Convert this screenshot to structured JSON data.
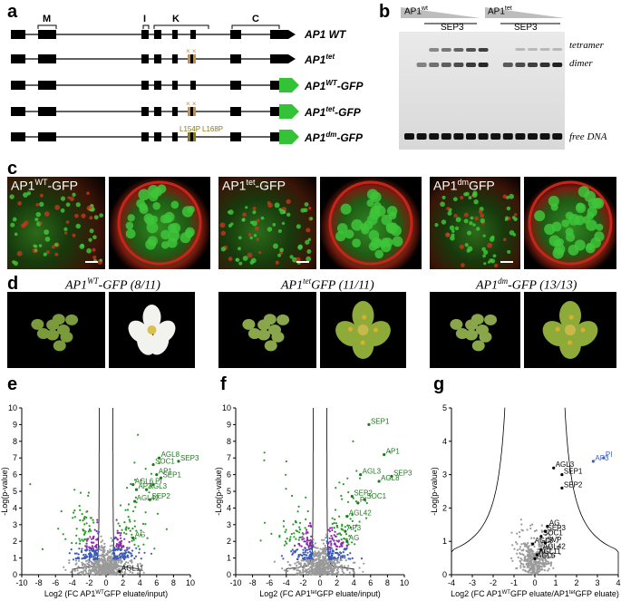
{
  "panels": {
    "a": "a",
    "b": "b",
    "c": "c",
    "d": "d",
    "e": "e",
    "f": "f",
    "g": "g"
  },
  "panel_a": {
    "domains": {
      "M": "M",
      "I": "I",
      "K": "K",
      "C": "C"
    },
    "constructs": [
      {
        "name": "AP1 WT",
        "sup": "",
        "rest": ""
      },
      {
        "name": "AP1",
        "sup": "tet",
        "rest": ""
      },
      {
        "name": "AP1",
        "sup": "WT",
        "rest": "-GFP"
      },
      {
        "name": "AP1",
        "sup": "tet",
        "rest": "-GFP"
      },
      {
        "name": "AP1",
        "sup": "dm",
        "rest": "-GFP"
      }
    ],
    "mutation_mark": "× ×",
    "mutations": {
      "m1": "L154P",
      "m2": "L168P"
    },
    "colors": {
      "mutation": "#c8913a",
      "gfp": "#34c236",
      "mut_text": "#8a7a10"
    }
  },
  "panel_b": {
    "ap1wt": "AP1",
    "ap1wt_sup": "wt",
    "ap1tet": "AP1",
    "ap1tet_sup": "tet",
    "sep3_left": "SEP3",
    "sep3_right": "SEP3",
    "tetramer": "tetramer",
    "dimer": "dimer",
    "free_dna": "free DNA"
  },
  "panel_c": [
    {
      "name": "AP1",
      "sup": "WT",
      "rest": "-GFP"
    },
    {
      "name": "AP1",
      "sup": "tet",
      "rest": "-GFP"
    },
    {
      "name": "AP1",
      "sup": "dm",
      "rest": "GFP"
    }
  ],
  "panel_d": [
    {
      "name": "AP1",
      "sup": "WT",
      "rest": "-GFP (8/11)"
    },
    {
      "name": "AP1",
      "sup": "tet",
      "rest": "GFP (11/11)"
    },
    {
      "name": "AP1",
      "sup": "dm",
      "rest": "-GFP (13/13)"
    }
  ],
  "chart_data": [
    {
      "type": "scatter",
      "panel": "e",
      "xlabel_pre": "Log2 (FC AP1",
      "xlabel_sup": "WT",
      "xlabel_post": "GFP eluate/input)",
      "ylabel": "-Log(p-value)",
      "xlim": [
        -10,
        10
      ],
      "ylim": [
        0,
        10
      ],
      "xticks": [
        -10,
        -8,
        -6,
        -4,
        -2,
        0,
        2,
        4,
        6,
        8,
        10
      ],
      "yticks": [
        0,
        1,
        2,
        3,
        4,
        5,
        6,
        7,
        8,
        9,
        10
      ],
      "labeled_points": [
        {
          "label": "AGL8",
          "x": 6.3,
          "y": 7.0,
          "color": "#1e7a1e"
        },
        {
          "label": "SEP3",
          "x": 8.6,
          "y": 6.8,
          "color": "#1e7a1e"
        },
        {
          "label": "SOC1",
          "x": 5.6,
          "y": 6.6,
          "color": "#1e7a1e"
        },
        {
          "label": "AP1",
          "x": 6.0,
          "y": 6.0,
          "color": "#1e7a1e"
        },
        {
          "label": "SEP1",
          "x": 6.5,
          "y": 5.8,
          "color": "#1e7a1e"
        },
        {
          "label": "AGL6",
          "x": 3.2,
          "y": 5.4,
          "color": "#1e7a1e"
        },
        {
          "label": "PI",
          "x": 5.6,
          "y": 5.4,
          "color": "#1e7a1e"
        },
        {
          "label": "AP3",
          "x": 3.6,
          "y": 5.1,
          "color": "#1e7a1e"
        },
        {
          "label": "AGL3",
          "x": 4.8,
          "y": 5.1,
          "color": "#1e7a1e"
        },
        {
          "label": "SEP2",
          "x": 5.2,
          "y": 4.5,
          "color": "#1e7a1e"
        },
        {
          "label": "AGL42",
          "x": 3.4,
          "y": 4.4,
          "color": "#1e7a1e"
        },
        {
          "label": "AG",
          "x": 3.2,
          "y": 2.2,
          "color": "#1e7a1e"
        },
        {
          "label": "AGL11",
          "x": 1.6,
          "y": 0.2,
          "color": "#000000"
        }
      ]
    },
    {
      "type": "scatter",
      "panel": "f",
      "xlabel_pre": "Log2 (FC AP1",
      "xlabel_sup": "tet",
      "xlabel_post": "GFP eluate/input)",
      "ylabel": "-Log(p-value)",
      "xlim": [
        -10,
        10
      ],
      "ylim": [
        0,
        10
      ],
      "xticks": [
        -10,
        -8,
        -6,
        -4,
        -2,
        0,
        2,
        4,
        6,
        8,
        10
      ],
      "yticks": [
        0,
        1,
        2,
        3,
        4,
        5,
        6,
        7,
        8,
        9,
        10
      ],
      "labeled_points": [
        {
          "label": "SEP1",
          "x": 5.8,
          "y": 9.0,
          "color": "#1e7a1e"
        },
        {
          "label": "AP1",
          "x": 7.6,
          "y": 7.2,
          "color": "#1e7a1e"
        },
        {
          "label": "AGL3",
          "x": 4.8,
          "y": 6.0,
          "color": "#1e7a1e"
        },
        {
          "label": "SEP3",
          "x": 8.5,
          "y": 5.9,
          "color": "#1e7a1e"
        },
        {
          "label": "AGL8",
          "x": 7.0,
          "y": 5.6,
          "color": "#1e7a1e"
        },
        {
          "label": "SEP2",
          "x": 3.8,
          "y": 4.7,
          "color": "#1e7a1e"
        },
        {
          "label": "SOC1",
          "x": 5.3,
          "y": 4.5,
          "color": "#1e7a1e"
        },
        {
          "label": "PI",
          "x": 4.5,
          "y": 4.3,
          "color": "#1e7a1e"
        },
        {
          "label": "AGL42",
          "x": 3.2,
          "y": 3.5,
          "color": "#1e7a1e"
        },
        {
          "label": "AP3",
          "x": 3.0,
          "y": 2.6,
          "color": "#1e7a1e"
        },
        {
          "label": "AG",
          "x": 3.2,
          "y": 2.0,
          "color": "#1e7a1e"
        }
      ]
    },
    {
      "type": "scatter",
      "panel": "g",
      "xlabel_pre": "Log2 (FC AP1",
      "xlabel_sup": "WT",
      "xlabel_mid": "GFP eluate/AP1",
      "xlabel_sup2": "tet",
      "xlabel_post": "GFP eluate)",
      "ylabel": "-Log(p-value)",
      "xlim": [
        -4,
        4
      ],
      "ylim": [
        0,
        5
      ],
      "xticks": [
        -4,
        -3,
        -2,
        -1,
        0,
        1,
        2,
        3,
        4
      ],
      "yticks": [
        0,
        1,
        2,
        3,
        4,
        5
      ],
      "labeled_points": [
        {
          "label": "PI",
          "x": 3.3,
          "y": 3.5,
          "color": "#3a5fc4"
        },
        {
          "label": "AP3",
          "x": 2.8,
          "y": 3.4,
          "color": "#3a5fc4"
        },
        {
          "label": "AGL3",
          "x": 0.9,
          "y": 3.2,
          "color": "#000000"
        },
        {
          "label": "SEP1",
          "x": 1.3,
          "y": 3.0,
          "color": "#000000"
        },
        {
          "label": "SEP2",
          "x": 1.3,
          "y": 2.6,
          "color": "#000000"
        },
        {
          "label": "AG",
          "x": 0.6,
          "y": 1.45,
          "color": "#000000"
        },
        {
          "label": "SEP3",
          "x": 0.5,
          "y": 1.3,
          "color": "#000000"
        },
        {
          "label": "SOC1",
          "x": 0.3,
          "y": 1.15,
          "color": "#000000"
        },
        {
          "label": "AGL8",
          "x": -0.1,
          "y": 0.92,
          "color": "#000000"
        },
        {
          "label": "SVP",
          "x": 0.5,
          "y": 0.95,
          "color": "#000000"
        },
        {
          "label": "AGL42",
          "x": 0.3,
          "y": 0.75,
          "color": "#000000"
        },
        {
          "label": "AGL11",
          "x": 0.1,
          "y": 0.6,
          "color": "#000000"
        },
        {
          "label": "AGL6",
          "x": 0.0,
          "y": 0.48,
          "color": "#000000"
        }
      ]
    }
  ],
  "colors": {
    "green": "#2a9a2a",
    "purple": "#8a2aa8",
    "blue": "#3a5ab8",
    "grey": "#9a9a9a"
  }
}
